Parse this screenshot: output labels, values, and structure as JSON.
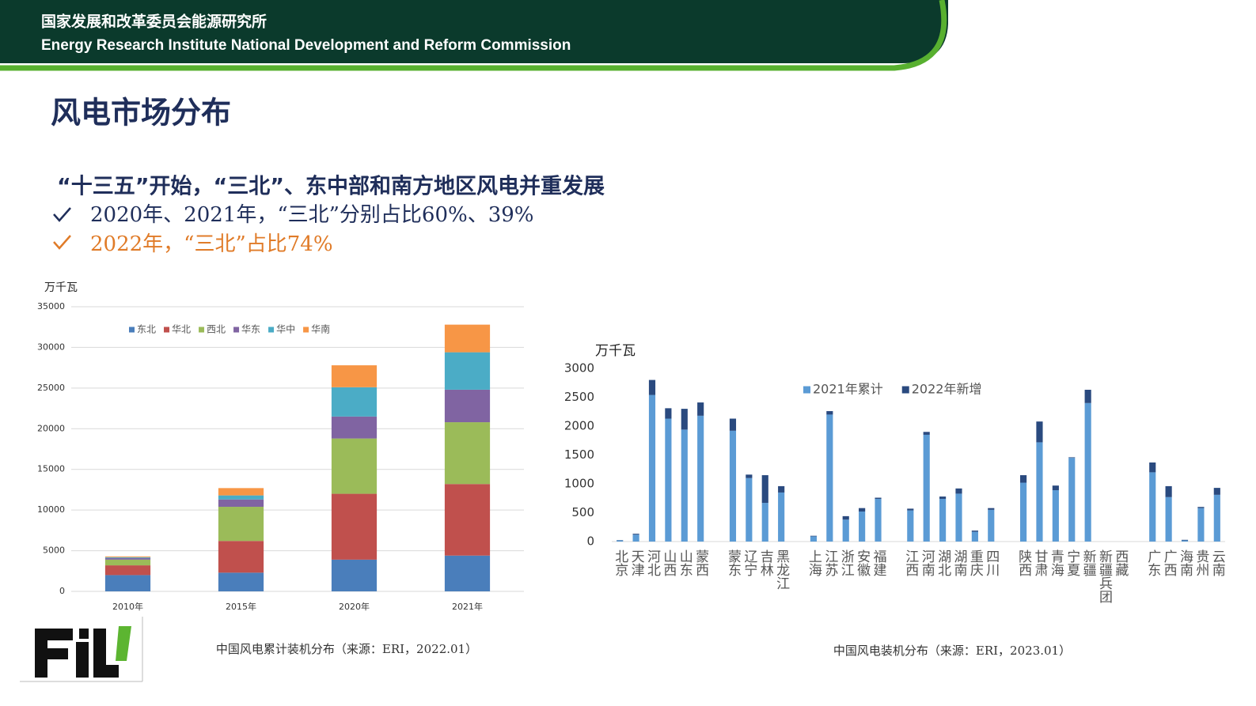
{
  "header": {
    "org_cn": "国家发展和改革委员会能源研究所",
    "org_en": "Energy Research Institute National Development and Reform Commission"
  },
  "title": "风电市场分布",
  "subtitle": "“十三五”开始，“三北”、东中部和南方地区风电并重发展",
  "bullets": [
    "2020年、2021年，“三北”分别占比60%、39%",
    "2022年，“三北”占比74%"
  ],
  "chart_data": [
    {
      "type": "bar",
      "stacked": true,
      "ylabel": "万千瓦",
      "caption": "中国风电累计装机分布（来源：ERI，2022.01）",
      "categories": [
        "2010年",
        "2015年",
        "2020年",
        "2021年"
      ],
      "ylim": [
        0,
        35000
      ],
      "yticks": [
        0,
        5000,
        10000,
        15000,
        20000,
        25000,
        30000,
        35000
      ],
      "grid": true,
      "legend": "top",
      "series": [
        {
          "name": "东北",
          "color": "#4a7ebb",
          "values": [
            2000,
            2300,
            3900,
            4400
          ]
        },
        {
          "name": "华北",
          "color": "#c0504d",
          "values": [
            1200,
            3900,
            8100,
            8800
          ]
        },
        {
          "name": "西北",
          "color": "#9bbb59",
          "values": [
            700,
            4200,
            6800,
            7600
          ]
        },
        {
          "name": "华东",
          "color": "#8064a2",
          "values": [
            200,
            900,
            2700,
            4000
          ]
        },
        {
          "name": "华中",
          "color": "#4bacc6",
          "values": [
            100,
            500,
            3600,
            4600
          ]
        },
        {
          "name": "华南",
          "color": "#f79646",
          "values": [
            100,
            900,
            2700,
            3400
          ]
        }
      ]
    },
    {
      "type": "bar",
      "stacked": true,
      "ylabel": "万千瓦",
      "caption": "中国风电装机分布（来源：ERI，2023.01）",
      "categories": [
        "北京",
        "天津",
        "河北",
        "山西",
        "山东",
        "蒙西",
        null,
        "蒙东",
        "辽宁",
        "吉林",
        "黑龙江",
        null,
        "上海",
        "江苏",
        "浙江",
        "安徽",
        "福建",
        null,
        "江西",
        "河南",
        "湖北",
        "湖南",
        "重庆",
        "四川",
        null,
        "陕西",
        "甘肃",
        "青海",
        "宁夏",
        "新疆",
        "新疆兵团",
        "西藏",
        null,
        "广东",
        "广西",
        "海南",
        "贵州",
        "云南"
      ],
      "ylim": [
        0,
        3000
      ],
      "yticks": [
        0,
        500,
        1000,
        1500,
        2000,
        2500,
        3000
      ],
      "grid": false,
      "legend": "top",
      "series": [
        {
          "name": "2021年累计",
          "color": "#5b9bd5",
          "values": [
            20,
            120,
            2540,
            2130,
            1940,
            2180,
            null,
            1920,
            1100,
            670,
            850,
            null,
            90,
            2200,
            380,
            520,
            740,
            null,
            540,
            1850,
            740,
            830,
            170,
            550,
            null,
            1020,
            1720,
            890,
            1450,
            2400,
            0,
            0,
            null,
            1200,
            770,
            20,
            580,
            810
          ]
        },
        {
          "name": "2022年新增",
          "color": "#2a4a7f",
          "values": [
            5,
            15,
            260,
            180,
            360,
            230,
            null,
            210,
            60,
            480,
            110,
            null,
            10,
            60,
            60,
            60,
            20,
            null,
            30,
            50,
            40,
            90,
            20,
            30,
            null,
            130,
            360,
            80,
            10,
            230,
            0,
            0,
            null,
            170,
            190,
            10,
            20,
            120
          ]
        }
      ]
    }
  ]
}
